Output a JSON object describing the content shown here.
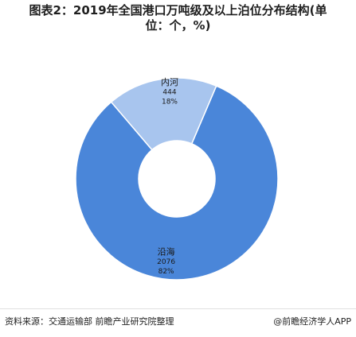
{
  "title": {
    "line1": "图表2：2019年全国港口万吨级及以上泊位分布结构(单",
    "line2": "位：个，%)"
  },
  "chart_data": {
    "type": "pie",
    "style": "donut",
    "categories": [
      "沿海",
      "内河"
    ],
    "values": [
      2076,
      444
    ],
    "percent_labels": [
      "82%",
      "18%"
    ],
    "value_labels": [
      "2076",
      "444"
    ],
    "colors": [
      "#4a86d9",
      "#a8c5ee"
    ],
    "border_color": "#ffffff",
    "legend": "none"
  },
  "footer": {
    "source": "资料来源：交通运输部 前瞻产业研究院整理",
    "brand": "@前瞻经济学人APP"
  }
}
